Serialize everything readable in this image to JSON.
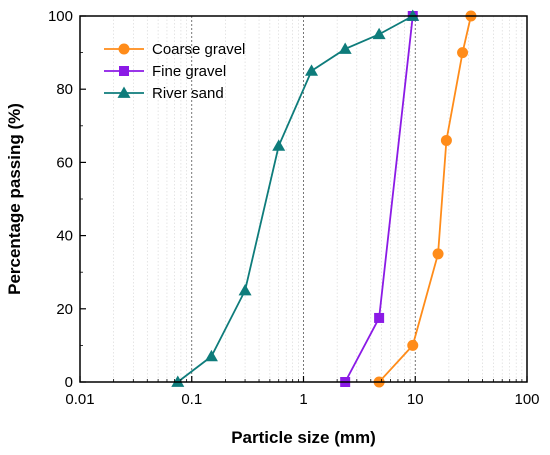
{
  "chart_data": {
    "type": "line",
    "title": "",
    "xlabel": "Particle size (mm)",
    "ylabel": "Percentage passing (%)",
    "x_scale": "log",
    "xlim": [
      0.01,
      100
    ],
    "ylim": [
      0,
      100
    ],
    "x_ticks": [
      0.01,
      0.1,
      1,
      10,
      100
    ],
    "x_tick_labels": [
      "0.01",
      "0.1",
      "1",
      "10",
      "100"
    ],
    "y_ticks": [
      0,
      20,
      40,
      60,
      80,
      100
    ],
    "y_tick_labels": [
      "0",
      "20",
      "40",
      "60",
      "80",
      "100"
    ],
    "grid": "vertical log gridlines",
    "legend_position": "top-left",
    "series": [
      {
        "name": "Coarse gravel",
        "color": "#FF8C1A",
        "marker": "circle",
        "x": [
          4.75,
          9.5,
          16,
          19,
          26.5,
          31.5
        ],
        "y": [
          0,
          10,
          35,
          66,
          90,
          100
        ]
      },
      {
        "name": "Fine gravel",
        "color": "#8B1AE6",
        "marker": "square",
        "x": [
          2.36,
          4.75,
          9.5
        ],
        "y": [
          0,
          17.5,
          100
        ]
      },
      {
        "name": "River sand",
        "color": "#0E7C7B",
        "marker": "triangle",
        "x": [
          0.075,
          0.15,
          0.3,
          0.6,
          1.18,
          2.36,
          4.75,
          9.5
        ],
        "y": [
          0,
          7,
          25,
          64.5,
          85,
          91,
          95,
          100
        ]
      }
    ]
  }
}
